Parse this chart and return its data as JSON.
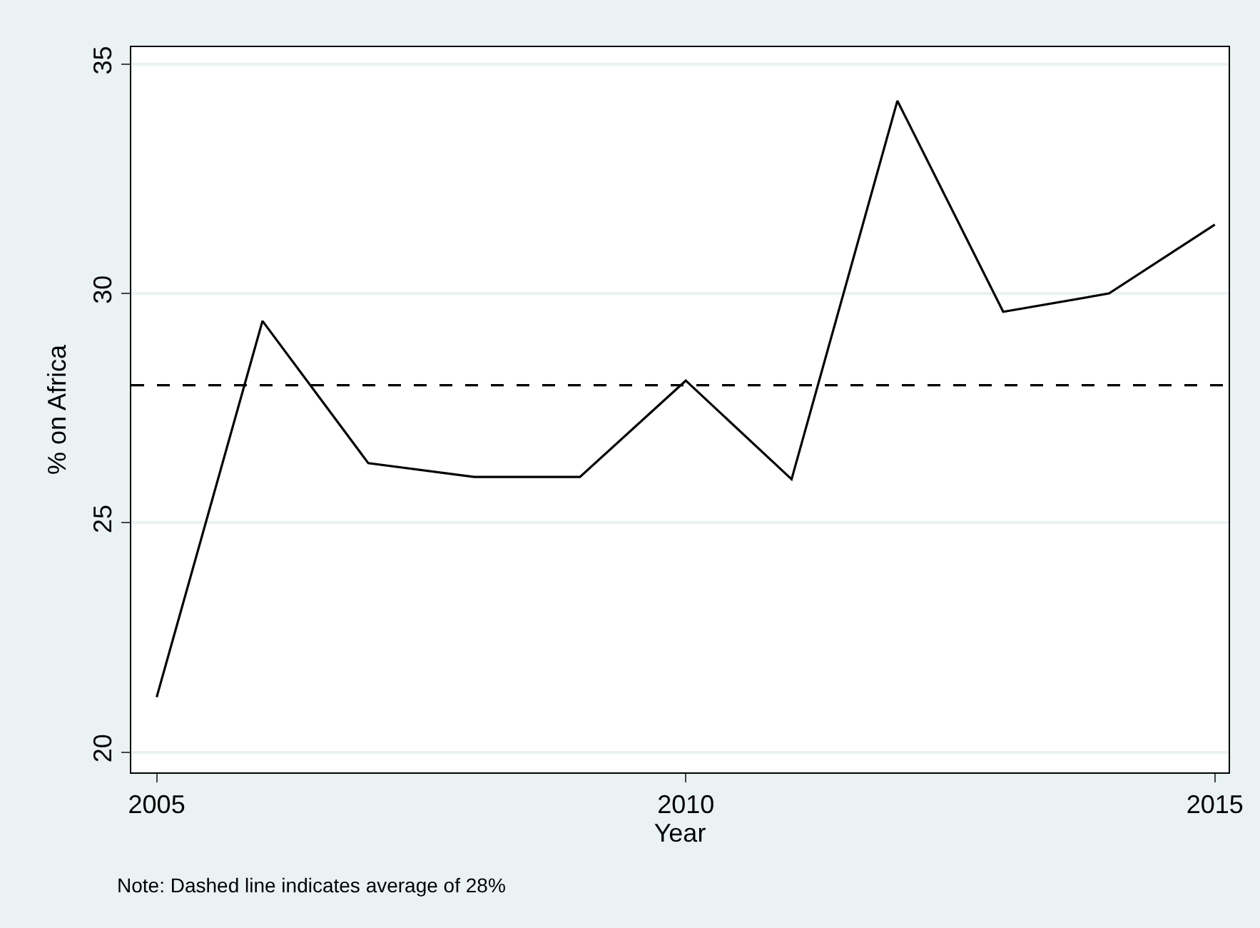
{
  "chart_data": {
    "type": "line",
    "xlabel": "Year",
    "ylabel": "% on Africa",
    "x": [
      2005,
      2006,
      2007,
      2008,
      2009,
      2010,
      2011,
      2012,
      2013,
      2014,
      2015
    ],
    "series": [
      {
        "color": "#000000",
        "values": [
          21.2,
          29.4,
          26.3,
          26.0,
          26.0,
          28.1,
          25.95,
          34.2,
          29.6,
          30.0,
          31.5
        ]
      }
    ],
    "xlim": [
      2004.76,
      2015.13
    ],
    "xticks": [
      2005,
      2010,
      2015
    ],
    "ylim": [
      19.56,
      35.37
    ],
    "yticks": [
      20,
      25,
      30,
      35
    ],
    "grid": "y",
    "marker": "none",
    "line_style": "solid",
    "ref_lines": [
      {
        "axis": "y",
        "value": 28,
        "label": null,
        "color": "#000000",
        "line_style": "dashed"
      }
    ],
    "annotations": [
      "Note: Dashed line indicates average of 28%"
    ]
  }
}
